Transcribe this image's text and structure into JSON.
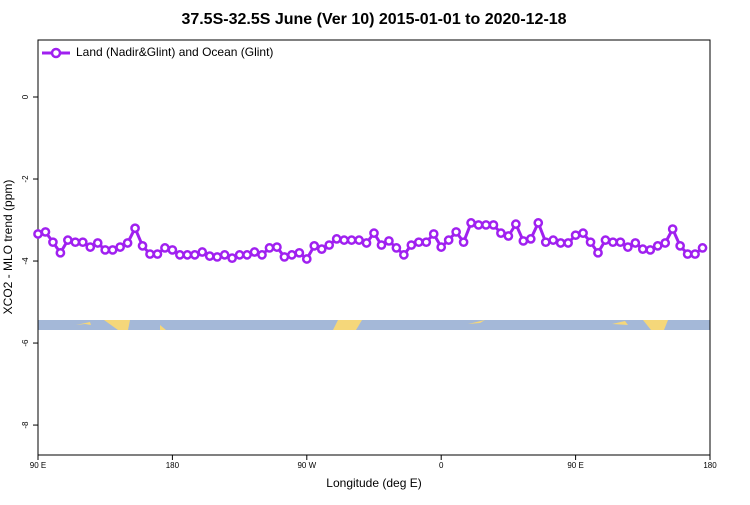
{
  "chart_data": {
    "type": "line",
    "title": "37.5S-32.5S June (Ver 10)   2015-01-01 to 2020-12-18",
    "xlabel": "Longitude (deg E)",
    "ylabel": "XCO2 - MLO trend (ppm)",
    "xlim": [
      90,
      540
    ],
    "xticks": [
      {
        "value": 90,
        "label": "90 E"
      },
      {
        "value": 180,
        "label": "180"
      },
      {
        "value": 270,
        "label": "90 W"
      },
      {
        "value": 360,
        "label": "0"
      },
      {
        "value": 450,
        "label": "90 E"
      },
      {
        "value": 540,
        "label": "180"
      }
    ],
    "ylim": [
      -8.73,
      1.39
    ],
    "yticks": [
      0,
      -2,
      -4,
      -6,
      -8
    ],
    "legend": "top-left",
    "x": [
      90,
      95,
      100,
      105,
      110,
      115,
      120,
      125,
      130,
      135,
      140,
      145,
      150,
      155,
      160,
      165,
      170,
      175,
      180,
      185,
      190,
      195,
      200,
      205,
      210,
      215,
      220,
      225,
      230,
      235,
      240,
      245,
      250,
      255,
      260,
      265,
      270,
      275,
      280,
      285,
      290,
      295,
      300,
      305,
      310,
      315,
      320,
      325,
      330,
      335,
      340,
      345,
      350,
      355,
      360,
      365,
      370,
      375,
      380,
      385,
      390,
      395,
      400,
      405,
      410,
      415,
      420,
      425,
      430,
      435,
      440,
      445,
      450,
      455,
      460,
      465,
      470,
      475,
      480,
      485,
      490,
      495,
      500,
      505,
      510,
      515,
      520,
      525,
      530,
      535
    ],
    "series": [
      {
        "name": "Land (Nadir&Glint) and Ocean (Glint)",
        "color": "#a020f0",
        "values": [
          -3.34,
          -3.29,
          -3.54,
          -3.8,
          -3.49,
          -3.54,
          -3.54,
          -3.66,
          -3.56,
          -3.73,
          -3.73,
          -3.66,
          -3.56,
          -3.2,
          -3.63,
          -3.83,
          -3.83,
          -3.68,
          -3.73,
          -3.85,
          -3.85,
          -3.85,
          -3.78,
          -3.88,
          -3.9,
          -3.85,
          -3.93,
          -3.85,
          -3.85,
          -3.78,
          -3.85,
          -3.68,
          -3.66,
          -3.9,
          -3.85,
          -3.8,
          -3.95,
          -3.63,
          -3.71,
          -3.61,
          -3.46,
          -3.49,
          -3.49,
          -3.49,
          -3.56,
          -3.32,
          -3.61,
          -3.51,
          -3.68,
          -3.85,
          -3.61,
          -3.54,
          -3.54,
          -3.34,
          -3.66,
          -3.49,
          -3.29,
          -3.54,
          -3.07,
          -3.12,
          -3.12,
          -3.12,
          -3.32,
          -3.39,
          -3.1,
          -3.51,
          -3.46,
          -3.07,
          -3.54,
          -3.49,
          -3.56,
          -3.56,
          -3.37,
          -3.32,
          -3.54,
          -3.8,
          -3.49,
          -3.54,
          -3.54,
          -3.66,
          -3.56,
          -3.71,
          -3.73,
          -3.63,
          -3.56,
          -3.22,
          -3.63,
          -3.83,
          -3.83,
          -3.68
        ]
      }
    ]
  }
}
